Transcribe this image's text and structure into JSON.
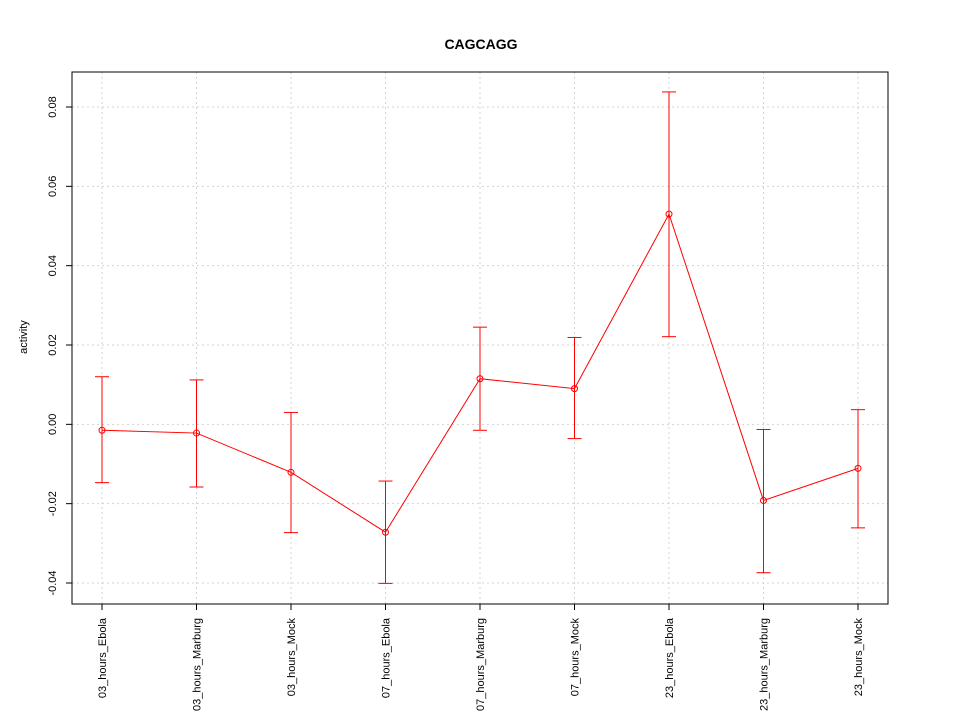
{
  "chart_data": {
    "type": "line",
    "title": "CAGCAGG",
    "xlabel": "",
    "ylabel": "activity",
    "categories": [
      "03_hours_Ebola",
      "03_hours_Marburg",
      "03_hours_Mock",
      "07_hours_Ebola",
      "07_hours_Marburg",
      "07_hours_Mock",
      "23_hours_Ebola",
      "23_hours_Marburg",
      "23_hours_Mock"
    ],
    "ylim": [
      -0.045,
      0.09
    ],
    "yticks": [
      -0.04,
      -0.02,
      0.0,
      0.02,
      0.04,
      0.06,
      0.08
    ],
    "ytick_labels": [
      "-0.04",
      "-0.02",
      "0.00",
      "0.02",
      "0.04",
      "0.06",
      "0.08"
    ],
    "grid": true,
    "series": [
      {
        "color": "#ff0000",
        "values": [
          -0.0015,
          -0.0022,
          -0.0121,
          -0.0272,
          0.0115,
          0.009,
          0.053,
          -0.0192,
          -0.0111
        ],
        "error_upper": [
          0.012,
          0.0112,
          0.003,
          -0.0143,
          0.0245,
          0.0219,
          0.0838,
          -0.0013,
          0.0037
        ],
        "error_lower": [
          -0.0147,
          -0.0158,
          -0.0273,
          -0.0401,
          -0.0015,
          -0.0036,
          0.0221,
          -0.0374,
          -0.0261
        ]
      }
    ]
  }
}
